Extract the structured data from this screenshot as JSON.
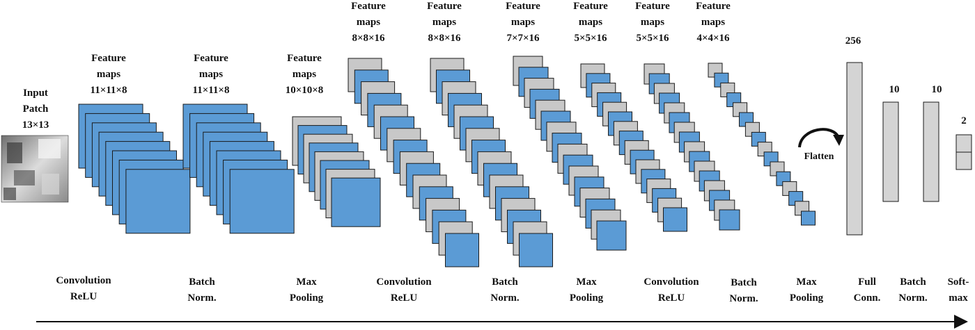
{
  "colors": {
    "blue_map": "#5b9bd5",
    "gray_map": "#c8c8c8",
    "outline": "#1a1a1a",
    "text": "#111111",
    "background": "#ffffff"
  },
  "input": {
    "lines": [
      "Input",
      "Patch",
      "13×13"
    ]
  },
  "stacks": [
    {
      "feature_lines": [
        "Feature",
        "maps",
        "11×11×8"
      ],
      "op_lines": [
        "Convolution",
        "ReLU"
      ],
      "layers": 8,
      "pattern": "blue"
    },
    {
      "feature_lines": [
        "Feature",
        "maps",
        "11×11×8"
      ],
      "op_lines": [
        "Batch",
        "Norm."
      ],
      "layers": 8,
      "pattern": "blue"
    },
    {
      "feature_lines": [
        "Feature",
        "maps",
        "10×10×8"
      ],
      "op_lines": [
        "Max",
        "Pooling"
      ],
      "layers": 8,
      "pattern": "alternate"
    },
    {
      "feature_lines": [
        "Feature",
        "maps",
        "8×8×16"
      ],
      "op_lines": [
        "Convolution",
        "ReLU"
      ],
      "layers": 16,
      "pattern": "alternate"
    },
    {
      "feature_lines": [
        "Feature",
        "maps",
        "8×8×16"
      ],
      "op_lines": [
        "Batch",
        "Norm."
      ],
      "layers": 16,
      "pattern": "alternate"
    },
    {
      "feature_lines": [
        "Feature",
        "maps",
        "7×7×16"
      ],
      "op_lines": [
        "Max",
        "Pooling"
      ],
      "layers": 16,
      "pattern": "alternate"
    },
    {
      "feature_lines": [
        "Feature",
        "maps",
        "5×5×16"
      ],
      "op_lines": [
        "Convolution",
        "ReLU"
      ],
      "layers": 16,
      "pattern": "alternate"
    },
    {
      "feature_lines": [
        "Feature",
        "maps",
        "5×5×16"
      ],
      "op_lines": [
        "Batch",
        "Norm."
      ],
      "layers": 16,
      "pattern": "alternate"
    },
    {
      "feature_lines": [
        "Feature",
        "maps",
        "4×4×16"
      ],
      "op_lines": [
        "Max",
        "Pooling"
      ],
      "layers": 16,
      "pattern": "alternate"
    }
  ],
  "flatten": {
    "label": "Flatten",
    "icon": "curved-arrow-icon"
  },
  "dense": [
    {
      "size_label": "256",
      "op_lines": [
        "Full",
        "Conn."
      ]
    },
    {
      "size_label": "10",
      "op_lines": [
        "Batch",
        "Norm."
      ]
    },
    {
      "size_label": "10",
      "op_lines": []
    },
    {
      "size_label": "2",
      "op_lines": [
        "Soft-",
        "max"
      ]
    }
  ],
  "flow_arrow": {
    "icon": "flow-arrow-icon"
  }
}
